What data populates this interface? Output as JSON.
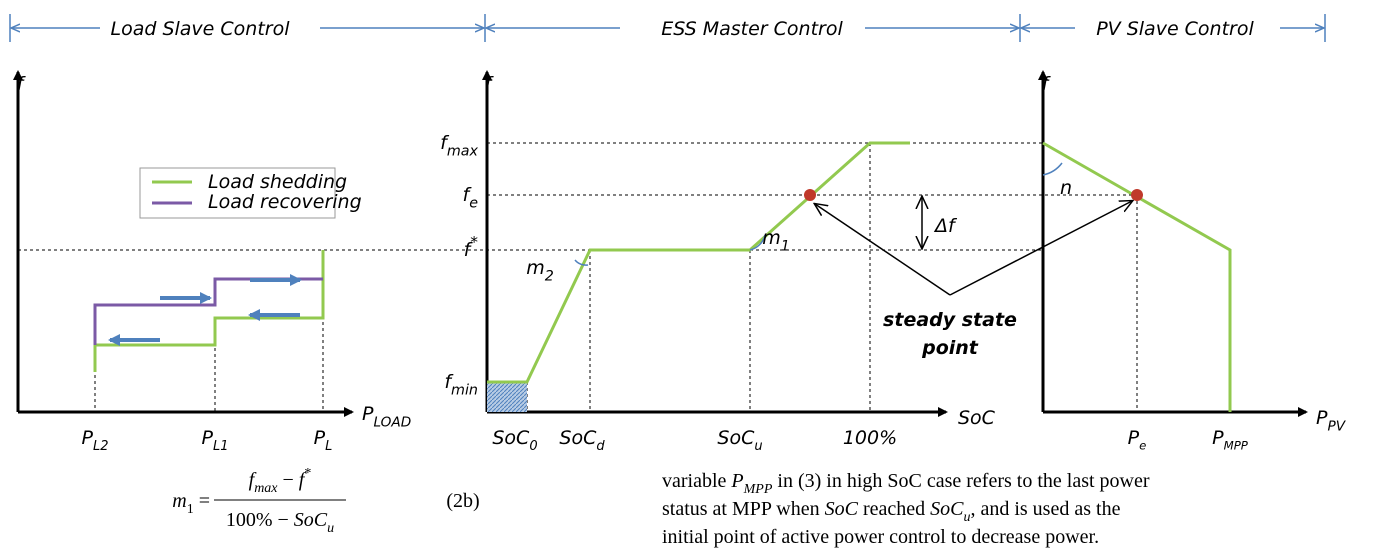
{
  "sections": [
    "Load Slave Control",
    "ESS Master Control",
    "PV Slave Control"
  ],
  "load_panel": {
    "y_axis": "f",
    "x_axis": {
      "main": "P",
      "sub": "LOAD"
    },
    "legend": [
      "Load shedding",
      "Load recovering"
    ],
    "x_ticks": [
      {
        "main": "P",
        "sub": "L2"
      },
      {
        "main": "P",
        "sub": "L1"
      },
      {
        "main": "P",
        "sub": "L"
      }
    ]
  },
  "ess_panel": {
    "y_axis": "f",
    "x_axis": "SoC",
    "y_ticks": [
      {
        "main": "f",
        "sub": "max"
      },
      {
        "main": "f",
        "sub": "e"
      },
      {
        "main": "f",
        "sup": "*"
      },
      {
        "main": "f",
        "sub": "min"
      }
    ],
    "x_ticks": [
      {
        "main": "SoC",
        "sub": "0"
      },
      {
        "main": "SoC",
        "sub": "d"
      },
      {
        "main": "SoC",
        "sub": "u"
      },
      "100%"
    ],
    "slopes": [
      {
        "main": "m",
        "sub": "2"
      },
      {
        "main": "m",
        "sub": "1"
      }
    ],
    "delta": "Δf",
    "annotation": [
      "steady state",
      "point"
    ]
  },
  "pv_panel": {
    "y_axis": "f",
    "x_axis": {
      "main": "P",
      "sub": "PV"
    },
    "slope": "n",
    "x_ticks": [
      {
        "main": "P",
        "sub": "e"
      },
      {
        "main": "P",
        "sub": "MPP"
      }
    ]
  },
  "equation": {
    "lhs": [
      {
        "text": "m",
        "style": "italic"
      },
      {
        "text": "1",
        "style": "sub"
      },
      {
        "text": " = ",
        "style": "normal"
      }
    ],
    "numerator": [
      {
        "text": "f",
        "style": "italic"
      },
      {
        "text": "max",
        "style": "italic-sub"
      },
      {
        "text": " − ",
        "style": "normal"
      },
      {
        "text": "f",
        "style": "italic"
      },
      {
        "text": "*",
        "style": "sup"
      }
    ],
    "denominator": [
      {
        "text": "100% − ",
        "style": "normal"
      },
      {
        "text": "SoC",
        "style": "italic"
      },
      {
        "text": "u",
        "style": "italic-sub"
      }
    ],
    "number": "(2b)"
  },
  "paragraph": [
    [
      {
        "text": "variable ",
        "style": "normal"
      },
      {
        "text": "P",
        "style": "italic"
      },
      {
        "text": "MPP",
        "style": "italic-sub"
      },
      {
        "text": " in (3) in high SoC case refers to the last power",
        "style": "normal"
      }
    ],
    [
      {
        "text": "status at MPP when ",
        "style": "normal"
      },
      {
        "text": "SoC",
        "style": "italic"
      },
      {
        "text": " reached ",
        "style": "normal"
      },
      {
        "text": "SoC",
        "style": "italic"
      },
      {
        "text": "u",
        "style": "italic-sub"
      },
      {
        "text": ", and is used as the",
        "style": "normal"
      }
    ],
    [
      {
        "text": "initial point of active power control to decrease power.",
        "style": "normal"
      }
    ]
  ]
}
